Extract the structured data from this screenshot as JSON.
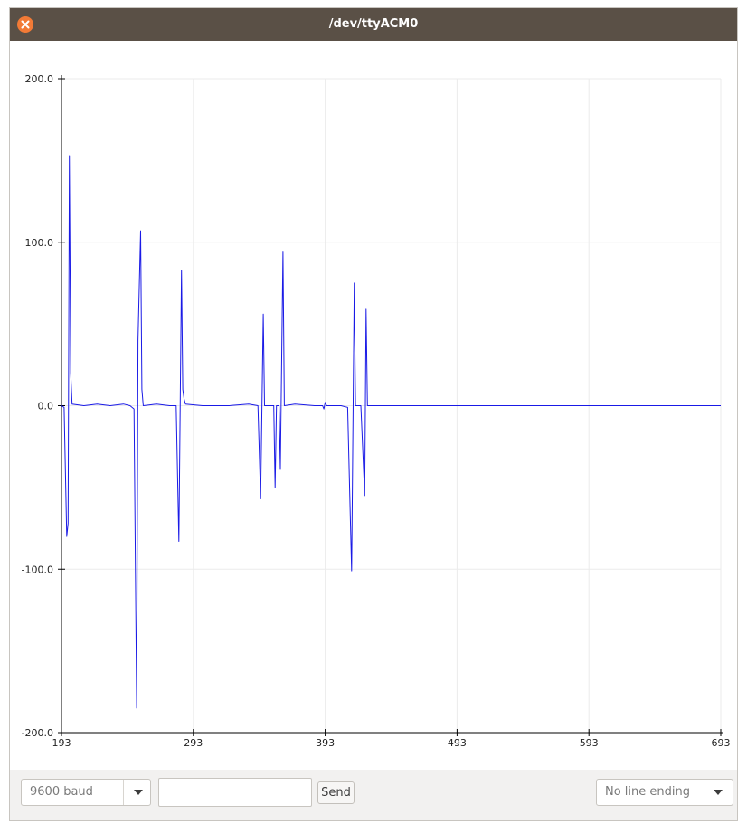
{
  "window": {
    "title": "/dev/ttyACM0"
  },
  "plot": {
    "y_ticks": [
      {
        "value": 200,
        "label": "200.0"
      },
      {
        "value": 100,
        "label": "100.0"
      },
      {
        "value": 0,
        "label": "0.0"
      },
      {
        "value": -100,
        "label": "-100.0"
      },
      {
        "value": -200,
        "label": "-200.0"
      }
    ],
    "x_ticks": [
      {
        "value": 193,
        "label": "193"
      },
      {
        "value": 293,
        "label": "293"
      },
      {
        "value": 393,
        "label": "393"
      },
      {
        "value": 493,
        "label": "493"
      },
      {
        "value": 593,
        "label": "593"
      },
      {
        "value": 693,
        "label": "693"
      }
    ],
    "line_color": "#1a1ae6",
    "grid_color": "#ebebeb",
    "axis_color": "#000000"
  },
  "chart_data": {
    "type": "line",
    "title": "",
    "xlabel": "",
    "ylabel": "",
    "xlim": [
      193,
      693
    ],
    "ylim": [
      -200,
      200
    ],
    "grid": true,
    "series": [
      {
        "points": [
          [
            193,
            0
          ],
          [
            195,
            -1
          ],
          [
            197,
            -80
          ],
          [
            198,
            -72
          ],
          [
            199,
            153
          ],
          [
            200,
            20
          ],
          [
            201,
            1
          ],
          [
            210,
            0
          ],
          [
            220,
            1
          ],
          [
            230,
            0
          ],
          [
            240,
            1
          ],
          [
            245,
            0
          ],
          [
            248,
            -2
          ],
          [
            250,
            -185
          ],
          [
            251,
            40
          ],
          [
            253,
            107
          ],
          [
            254,
            10
          ],
          [
            255,
            0
          ],
          [
            265,
            1
          ],
          [
            275,
            0
          ],
          [
            280,
            0
          ],
          [
            282,
            -83
          ],
          [
            284,
            83
          ],
          [
            285,
            10
          ],
          [
            286,
            4
          ],
          [
            287,
            1
          ],
          [
            300,
            0
          ],
          [
            320,
            0
          ],
          [
            335,
            1
          ],
          [
            342,
            0
          ],
          [
            344,
            -57
          ],
          [
            346,
            56
          ],
          [
            347,
            0
          ],
          [
            350,
            0
          ],
          [
            354,
            0
          ],
          [
            355,
            -50
          ],
          [
            356,
            0
          ],
          [
            358,
            0
          ],
          [
            359,
            -39
          ],
          [
            361,
            94
          ],
          [
            362,
            0
          ],
          [
            370,
            1
          ],
          [
            385,
            0
          ],
          [
            391,
            0
          ],
          [
            392,
            -2
          ],
          [
            393,
            2
          ],
          [
            394,
            0
          ],
          [
            405,
            0
          ],
          [
            410,
            -1
          ],
          [
            413,
            -101
          ],
          [
            415,
            75
          ],
          [
            416,
            0
          ],
          [
            418,
            0
          ],
          [
            420,
            0
          ],
          [
            423,
            -55
          ],
          [
            424,
            59
          ],
          [
            425,
            0
          ],
          [
            426,
            0
          ],
          [
            450,
            0
          ],
          [
            500,
            0
          ],
          [
            550,
            0
          ],
          [
            600,
            0
          ],
          [
            650,
            0
          ],
          [
            693,
            0
          ]
        ]
      }
    ]
  },
  "controls": {
    "baud": "9600 baud",
    "message_value": "",
    "send_label": "Send",
    "line_ending": "No line ending"
  }
}
